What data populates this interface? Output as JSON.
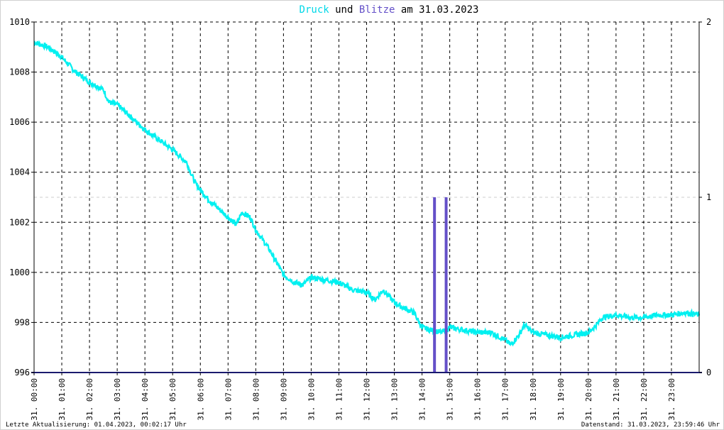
{
  "chart_data": {
    "type": "line",
    "title": {
      "part1": "Druck",
      "part2": " und ",
      "part3": "Blitze",
      "part4": " am 31.03.2023"
    },
    "colors": {
      "pressure": "#00f0f0",
      "lightning": "#6450c8",
      "axis": "#000000",
      "grid": "#000000",
      "baseline": "#1a1a6e"
    },
    "y_left": {
      "range": [
        996,
        1010
      ],
      "ticks": [
        "1010",
        "1008",
        "1006",
        "1004",
        "1002",
        "1000",
        "998",
        "996"
      ]
    },
    "y_right": {
      "range": [
        0,
        2
      ],
      "ticks": [
        "2",
        "1",
        "0"
      ]
    },
    "x_ticks": [
      "31. 00:00",
      "31. 01:00",
      "31. 02:00",
      "31. 03:00",
      "31. 04:00",
      "31. 05:00",
      "31. 06:00",
      "31. 07:00",
      "31. 08:00",
      "31. 09:00",
      "31. 10:00",
      "31. 11:00",
      "31. 12:00",
      "31. 13:00",
      "31. 14:00",
      "31. 15:00",
      "31. 16:00",
      "31. 17:00",
      "31. 18:00",
      "31. 19:00",
      "31. 20:00",
      "31. 21:00",
      "31. 22:00",
      "31. 23:00"
    ],
    "x_range_hours": [
      0,
      24
    ],
    "grid": true,
    "series": [
      {
        "name": "Druck",
        "axis": "left",
        "x_hours": [
          0.0,
          0.5,
          1.0,
          1.5,
          2.0,
          2.5,
          2.7,
          3.0,
          3.5,
          4.0,
          4.5,
          5.0,
          5.2,
          5.5,
          5.8,
          6.0,
          6.3,
          6.5,
          7.0,
          7.3,
          7.5,
          7.8,
          8.0,
          8.5,
          9.0,
          9.4,
          9.7,
          10.0,
          10.5,
          11.0,
          11.5,
          12.0,
          12.3,
          12.6,
          13.0,
          13.3,
          13.7,
          14.0,
          14.3,
          14.7,
          15.0,
          15.5,
          16.0,
          16.5,
          17.0,
          17.2,
          17.5,
          17.7,
          18.0,
          18.5,
          19.0,
          19.5,
          20.0,
          20.3,
          20.5,
          21.0,
          21.5,
          22.0,
          22.5,
          23.0,
          23.5,
          24.0
        ],
        "values": [
          1009.2,
          1009.0,
          1008.6,
          1008.0,
          1007.6,
          1007.3,
          1006.8,
          1006.7,
          1006.2,
          1005.7,
          1005.3,
          1004.9,
          1004.7,
          1004.4,
          1003.6,
          1003.3,
          1002.9,
          1002.7,
          1002.2,
          1001.9,
          1002.4,
          1002.2,
          1001.7,
          1000.9,
          999.9,
          999.6,
          999.5,
          999.8,
          999.7,
          999.6,
          999.3,
          999.2,
          998.9,
          999.3,
          998.8,
          998.6,
          998.4,
          997.8,
          997.7,
          997.6,
          997.8,
          997.7,
          997.6,
          997.6,
          997.3,
          997.1,
          997.5,
          997.9,
          997.6,
          997.5,
          997.4,
          997.5,
          997.6,
          997.9,
          998.2,
          998.3,
          998.2,
          998.2,
          998.3,
          998.3,
          998.4,
          998.3
        ]
      },
      {
        "name": "Blitze",
        "axis": "right",
        "x_hours": [
          14.45,
          14.87
        ],
        "values": [
          1,
          1
        ]
      }
    ],
    "footer_left": "Letzte Aktualisierung: 01.04.2023, 00:02:17 Uhr",
    "footer_right": "Datenstand: 31.03.2023, 23:59:46 Uhr"
  }
}
